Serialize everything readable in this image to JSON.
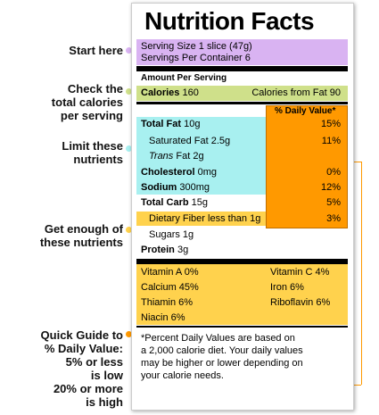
{
  "callouts": {
    "start": "Start here",
    "calories": [
      "Check the",
      "total calories",
      "per serving"
    ],
    "limit": [
      "Limit these",
      "nutrients"
    ],
    "enough": [
      "Get enough of",
      "these nutrients"
    ],
    "guide": [
      "Quick Guide to",
      "% Daily Value:",
      "5% or less",
      "is low",
      "20% or more",
      "is high"
    ]
  },
  "label": {
    "title": "Nutrition Facts",
    "serving_size": "Serving Size 1 slice (47g)",
    "servings_per_container": "Servings Per Container 6",
    "amount_per_serving": "Amount Per Serving",
    "calories_label": "Calories",
    "calories_value": "160",
    "calories_from_fat": "Calories from Fat 90",
    "dv_header": "% Daily Value*",
    "nutrients": {
      "total_fat": {
        "label": "Total Fat",
        "amount": "10g",
        "dv": "15%"
      },
      "sat_fat": {
        "label": "Saturated Fat",
        "amount": "2.5g",
        "dv": "11%"
      },
      "trans_fat": {
        "label": "Trans",
        "label2": "Fat",
        "amount": "2g"
      },
      "cholesterol": {
        "label": "Cholesterol",
        "amount": "0mg",
        "dv": "0%"
      },
      "sodium": {
        "label": "Sodium",
        "amount": "300mg",
        "dv": "12%"
      },
      "total_carb": {
        "label": "Total Carb",
        "amount": "15g",
        "dv": "5%"
      },
      "fiber": {
        "label": "Dietary Fiber less than",
        "amount": "1g",
        "dv": "3%"
      },
      "sugars": {
        "label": "Sugars",
        "amount": "1g"
      },
      "protein": {
        "label": "Protein",
        "amount": "3g"
      }
    },
    "vitamins": {
      "vit_a": "Vitamin A 0%",
      "vit_c": "Vitamin C 4%",
      "calcium": "Calcium 45%",
      "iron": "Iron 6%",
      "thiamin": "Thiamin 6%",
      "riboflavin": "Riboflavin 6%",
      "niacin": "Niacin 6%"
    },
    "footnote": [
      "*Percent Daily Values are based on",
      "a 2,000 calorie diet. Your daily values",
      "may be higher or lower depending on",
      "your calorie needs."
    ]
  },
  "colors": {
    "purple": "#d9b3f2",
    "green": "#cfe08a",
    "cyan": "#a8f0f0",
    "orange": "#ff9900",
    "yellow": "#ffd24d"
  }
}
